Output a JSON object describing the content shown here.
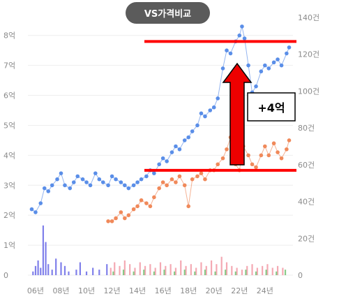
{
  "compare_button": {
    "label": "VS가격비교"
  },
  "annotation": {
    "label": "+4억"
  },
  "colors": {
    "series_a": "#5a8ee8",
    "series_b": "#f0895a",
    "volume_a": "#6a6ae6",
    "volume_b": "#f29aa6",
    "volume_c": "#74c274",
    "marker_line": "#ff0000",
    "arrow": "#ee0000",
    "button_bg": "#5b5b5b"
  },
  "chart_data": {
    "type": "line",
    "x_ticks": [
      "06년",
      "08년",
      "10년",
      "12년",
      "14년",
      "16년",
      "18년",
      "20년",
      "22년",
      "24년"
    ],
    "x_tick_years": [
      2006,
      2008,
      2010,
      2012,
      2014,
      2016,
      2018,
      2020,
      2022,
      2024
    ],
    "xlim": [
      2005.4,
      2026.2
    ],
    "y_left": {
      "ticks": [
        "0",
        "1억",
        "2억",
        "3억",
        "4억",
        "5억",
        "6억",
        "7억",
        "8억"
      ],
      "ylim": [
        0,
        8.6
      ]
    },
    "y_right": {
      "ticks": [
        "0",
        "20건",
        "40건",
        "60건",
        "80건",
        "100건",
        "120건",
        "140건"
      ],
      "ylim": [
        0,
        140
      ]
    },
    "series": [
      {
        "points": [
          [
            2005.7,
            2.2
          ],
          [
            2006.0,
            2.1
          ],
          [
            2006.4,
            2.4
          ],
          [
            2006.7,
            2.9
          ],
          [
            2007.0,
            2.8
          ],
          [
            2007.3,
            3.0
          ],
          [
            2007.7,
            3.2
          ],
          [
            2008.0,
            3.4
          ],
          [
            2008.3,
            3.0
          ],
          [
            2008.7,
            2.9
          ],
          [
            2009.0,
            3.1
          ],
          [
            2009.3,
            3.3
          ],
          [
            2009.7,
            3.2
          ],
          [
            2010.0,
            3.1
          ],
          [
            2010.3,
            3.0
          ],
          [
            2010.7,
            3.4
          ],
          [
            2011.0,
            3.2
          ],
          [
            2011.3,
            3.1
          ],
          [
            2011.7,
            3.0
          ],
          [
            2012.0,
            3.3
          ],
          [
            2012.3,
            3.2
          ],
          [
            2012.7,
            3.1
          ],
          [
            2013.0,
            3.0
          ],
          [
            2013.3,
            2.9
          ],
          [
            2013.7,
            3.0
          ],
          [
            2014.0,
            3.1
          ],
          [
            2014.3,
            3.2
          ],
          [
            2014.7,
            3.3
          ],
          [
            2015.0,
            3.5
          ],
          [
            2015.3,
            3.4
          ],
          [
            2015.7,
            3.7
          ],
          [
            2016.0,
            3.9
          ],
          [
            2016.3,
            3.8
          ],
          [
            2016.7,
            4.1
          ],
          [
            2017.0,
            4.3
          ],
          [
            2017.3,
            4.2
          ],
          [
            2017.7,
            4.5
          ],
          [
            2018.0,
            4.6
          ],
          [
            2018.3,
            4.8
          ],
          [
            2018.7,
            5.0
          ],
          [
            2019.0,
            5.4
          ],
          [
            2019.3,
            5.3
          ],
          [
            2019.7,
            5.5
          ],
          [
            2020.0,
            5.6
          ],
          [
            2020.3,
            5.9
          ],
          [
            2020.7,
            6.9
          ],
          [
            2021.0,
            7.5
          ],
          [
            2021.3,
            7.4
          ],
          [
            2021.7,
            7.8
          ],
          [
            2022.0,
            8.0
          ],
          [
            2022.2,
            8.3
          ],
          [
            2022.4,
            7.9
          ],
          [
            2022.7,
            7.0
          ],
          [
            2023.0,
            6.1
          ],
          [
            2023.3,
            6.3
          ],
          [
            2023.7,
            6.8
          ],
          [
            2024.0,
            7.0
          ],
          [
            2024.3,
            6.9
          ],
          [
            2024.7,
            7.1
          ],
          [
            2025.0,
            7.2
          ],
          [
            2025.3,
            7.0
          ],
          [
            2025.7,
            7.4
          ],
          [
            2025.9,
            7.6
          ]
        ]
      },
      {
        "points": [
          [
            2011.7,
            1.8
          ],
          [
            2012.0,
            1.8
          ],
          [
            2012.3,
            1.9
          ],
          [
            2012.7,
            2.1
          ],
          [
            2013.0,
            1.9
          ],
          [
            2013.3,
            2.0
          ],
          [
            2013.7,
            2.2
          ],
          [
            2014.0,
            2.3
          ],
          [
            2014.3,
            2.5
          ],
          [
            2014.7,
            2.4
          ],
          [
            2015.0,
            2.3
          ],
          [
            2015.3,
            2.6
          ],
          [
            2015.7,
            2.9
          ],
          [
            2016.0,
            3.1
          ],
          [
            2016.3,
            3.0
          ],
          [
            2016.7,
            3.2
          ],
          [
            2017.0,
            3.1
          ],
          [
            2017.3,
            3.3
          ],
          [
            2017.7,
            3.0
          ],
          [
            2018.0,
            2.3
          ],
          [
            2018.3,
            3.2
          ],
          [
            2018.7,
            3.3
          ],
          [
            2019.0,
            3.4
          ],
          [
            2019.3,
            3.2
          ],
          [
            2019.7,
            3.5
          ],
          [
            2020.0,
            3.5
          ],
          [
            2020.3,
            3.7
          ],
          [
            2020.7,
            3.9
          ],
          [
            2021.0,
            4.2
          ],
          [
            2021.3,
            4.6
          ],
          [
            2021.7,
            3.7
          ],
          [
            2022.0,
            3.5
          ],
          [
            2022.3,
            4.3
          ],
          [
            2022.7,
            4.0
          ],
          [
            2023.0,
            3.7
          ],
          [
            2023.3,
            3.6
          ],
          [
            2023.7,
            4.0
          ],
          [
            2024.0,
            4.3
          ],
          [
            2024.3,
            4.0
          ],
          [
            2024.7,
            4.4
          ],
          [
            2025.0,
            4.1
          ],
          [
            2025.3,
            3.9
          ],
          [
            2025.7,
            4.2
          ],
          [
            2025.9,
            4.5
          ]
        ]
      }
    ],
    "volume_a": [
      [
        2005.8,
        2
      ],
      [
        2006.0,
        5
      ],
      [
        2006.2,
        8
      ],
      [
        2006.4,
        4
      ],
      [
        2006.6,
        27
      ],
      [
        2006.8,
        18
      ],
      [
        2007.0,
        6
      ],
      [
        2007.3,
        3
      ],
      [
        2007.6,
        9
      ],
      [
        2008.0,
        7
      ],
      [
        2008.3,
        5
      ],
      [
        2008.6,
        2
      ],
      [
        2009.2,
        3
      ],
      [
        2009.5,
        7
      ],
      [
        2010.0,
        2
      ],
      [
        2010.5,
        4
      ],
      [
        2011.0,
        3
      ],
      [
        2011.6,
        6
      ]
    ],
    "volume_b": [
      [
        2011.9,
        4
      ],
      [
        2012.2,
        7
      ],
      [
        2012.6,
        5
      ],
      [
        2013.0,
        8
      ],
      [
        2013.4,
        6
      ],
      [
        2013.8,
        4
      ],
      [
        2014.2,
        7
      ],
      [
        2014.6,
        5
      ],
      [
        2015.0,
        6
      ],
      [
        2015.4,
        4
      ],
      [
        2015.8,
        7
      ],
      [
        2016.2,
        5
      ],
      [
        2016.6,
        6
      ],
      [
        2017.0,
        4
      ],
      [
        2017.4,
        8
      ],
      [
        2017.8,
        5
      ],
      [
        2018.2,
        6
      ],
      [
        2018.6,
        4
      ],
      [
        2019.0,
        7
      ],
      [
        2019.4,
        5
      ],
      [
        2019.8,
        8
      ],
      [
        2020.2,
        6
      ],
      [
        2020.6,
        10
      ],
      [
        2021.0,
        7
      ],
      [
        2021.4,
        5
      ],
      [
        2021.8,
        4
      ],
      [
        2022.2,
        3
      ],
      [
        2022.6,
        5
      ],
      [
        2023.0,
        6
      ],
      [
        2023.4,
        4
      ],
      [
        2023.8,
        5
      ],
      [
        2024.2,
        6
      ],
      [
        2024.6,
        4
      ],
      [
        2025.0,
        5
      ],
      [
        2025.4,
        4
      ]
    ],
    "volume_c": [
      [
        2012.1,
        2
      ],
      [
        2012.9,
        3
      ],
      [
        2013.7,
        2
      ],
      [
        2014.5,
        3
      ],
      [
        2015.3,
        2
      ],
      [
        2016.1,
        3
      ],
      [
        2016.9,
        2
      ],
      [
        2017.7,
        3
      ],
      [
        2018.5,
        2
      ],
      [
        2019.3,
        3
      ],
      [
        2020.1,
        2
      ],
      [
        2020.9,
        3
      ],
      [
        2021.7,
        2
      ],
      [
        2022.5,
        3
      ],
      [
        2023.3,
        2
      ],
      [
        2024.1,
        3
      ],
      [
        2024.9,
        2
      ],
      [
        2025.6,
        3
      ]
    ],
    "markers": {
      "upper_y": 7.8,
      "lower_y": 3.5
    }
  }
}
